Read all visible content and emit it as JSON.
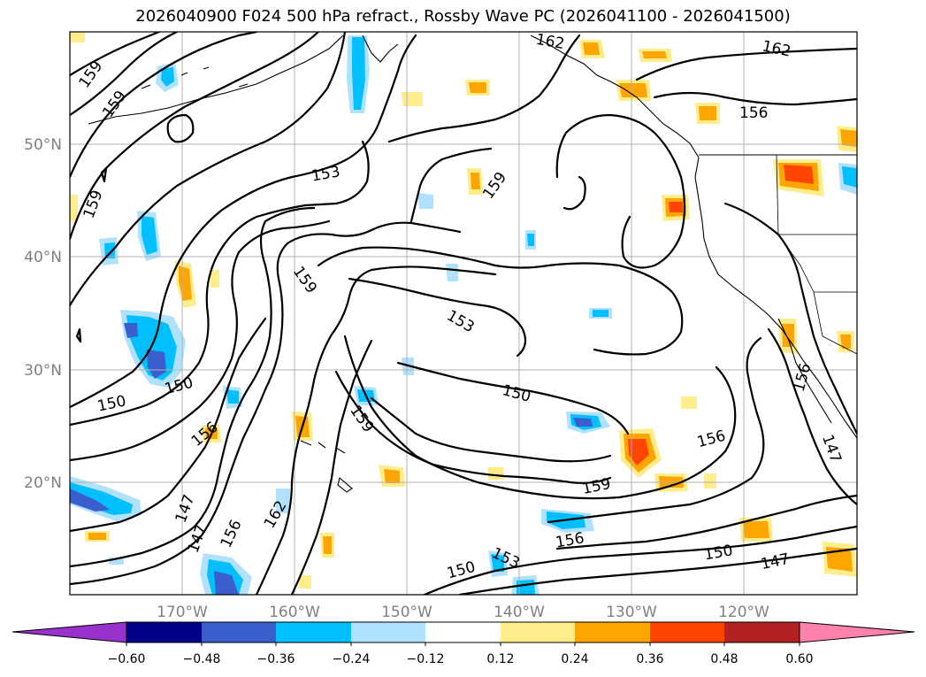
{
  "title": "2026040900 F024 500 hPa refract., Rossby Wave PC (2026041100 - 2026041500)",
  "lon_labels": [
    "170°W",
    "160°W",
    "150°W",
    "140°W",
    "130°W",
    "120°W"
  ],
  "lat_labels": [
    "50°N",
    "40°N",
    "30°N",
    "20°N"
  ],
  "colorbar": {
    "tick_labels": [
      "−0.60",
      "−0.48",
      "−0.36",
      "−0.24",
      "−0.12",
      "0.12",
      "0.24",
      "0.36",
      "0.48",
      "0.60"
    ],
    "colors": [
      "#9932cc",
      "#00008b",
      "#3a5fcd",
      "#00bfff",
      "#b0e2ff",
      "#ffffff",
      "#ffec8b",
      "#ffa500",
      "#ff4500",
      "#b22222",
      "#ff82ab"
    ]
  },
  "contour_labels": [
    {
      "id": "159-a",
      "text": "159"
    },
    {
      "id": "159-b",
      "text": "159"
    },
    {
      "id": "159-c",
      "text": "159"
    },
    {
      "id": "162-a",
      "text": "162"
    },
    {
      "id": "162-b",
      "text": "162"
    },
    {
      "id": "156-a",
      "text": "156"
    },
    {
      "id": "153-a",
      "text": "153"
    },
    {
      "id": "159-d",
      "text": "159"
    },
    {
      "id": "159-e",
      "text": "159"
    },
    {
      "id": "153-b",
      "text": "153"
    },
    {
      "id": "150-a",
      "text": "150"
    },
    {
      "id": "150-b",
      "text": "150"
    },
    {
      "id": "150-c",
      "text": "150"
    },
    {
      "id": "156-b",
      "text": "156"
    },
    {
      "id": "159-f",
      "text": "159"
    },
    {
      "id": "156-c",
      "text": "156"
    },
    {
      "id": "159-g",
      "text": "159"
    },
    {
      "id": "162-c",
      "text": "162"
    },
    {
      "id": "147-a",
      "text": "147"
    },
    {
      "id": "147-b",
      "text": "147"
    },
    {
      "id": "156-d",
      "text": "156"
    },
    {
      "id": "156-e",
      "text": "156"
    },
    {
      "id": "150-d",
      "text": "150"
    },
    {
      "id": "153-c",
      "text": "153"
    },
    {
      "id": "150-e",
      "text": "150"
    },
    {
      "id": "147-c",
      "text": "147"
    },
    {
      "id": "156-f",
      "text": "156"
    },
    {
      "id": "147-d",
      "text": "147"
    }
  ]
}
